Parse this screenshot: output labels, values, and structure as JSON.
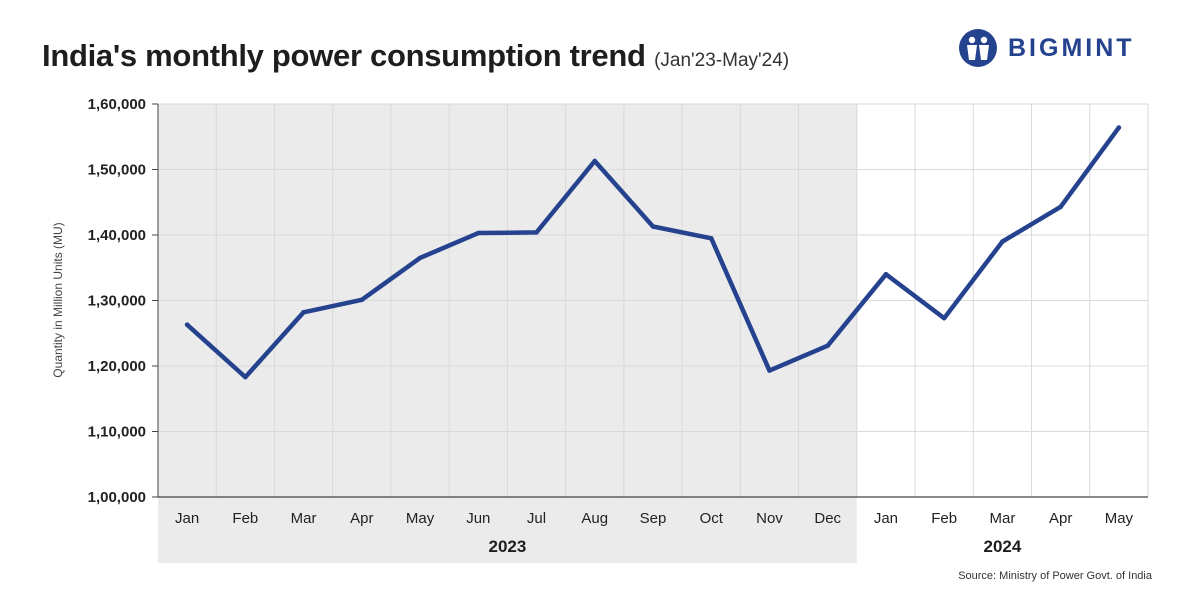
{
  "header": {
    "title": "India's monthly power consumption trend",
    "subtitle": "(Jan'23-May'24)"
  },
  "brand": {
    "name": "BIGMINT",
    "logo_icon": "bigmint-logo-icon",
    "color": "#25428f"
  },
  "source": "Source: Ministry of Power Govt. of India",
  "chart_data": {
    "type": "line",
    "title": "India's monthly power consumption trend",
    "subtitle": "(Jan'23-May'24)",
    "xlabel": "",
    "ylabel": "Quantity in Million Units (MU)",
    "ylim": [
      100000,
      160000
    ],
    "yticks": [
      100000,
      110000,
      120000,
      130000,
      140000,
      150000,
      160000
    ],
    "ytick_labels": [
      "1,00,000",
      "1,10,000",
      "1,20,000",
      "1,30,000",
      "1,40,000",
      "1,50,000",
      "1,60,000"
    ],
    "categories": [
      "Jan",
      "Feb",
      "Mar",
      "Apr",
      "May",
      "Jun",
      "Jul",
      "Aug",
      "Sep",
      "Oct",
      "Nov",
      "Dec",
      "Jan",
      "Feb",
      "Mar",
      "Apr",
      "May"
    ],
    "groups": [
      {
        "label": "2023",
        "count": 12,
        "shaded": true
      },
      {
        "label": "2024",
        "count": 5,
        "shaded": false
      }
    ],
    "grid": true,
    "series": [
      {
        "name": "Power consumption",
        "color": "#25428f",
        "values": [
          126300,
          118300,
          128200,
          130100,
          136500,
          140300,
          140400,
          151300,
          141300,
          139500,
          119300,
          123100,
          134000,
          127300,
          139000,
          144300,
          156400
        ]
      }
    ],
    "colors": {
      "shade": "#ebebeb",
      "grid": "#d9d9d9",
      "axis": "#444444"
    }
  }
}
